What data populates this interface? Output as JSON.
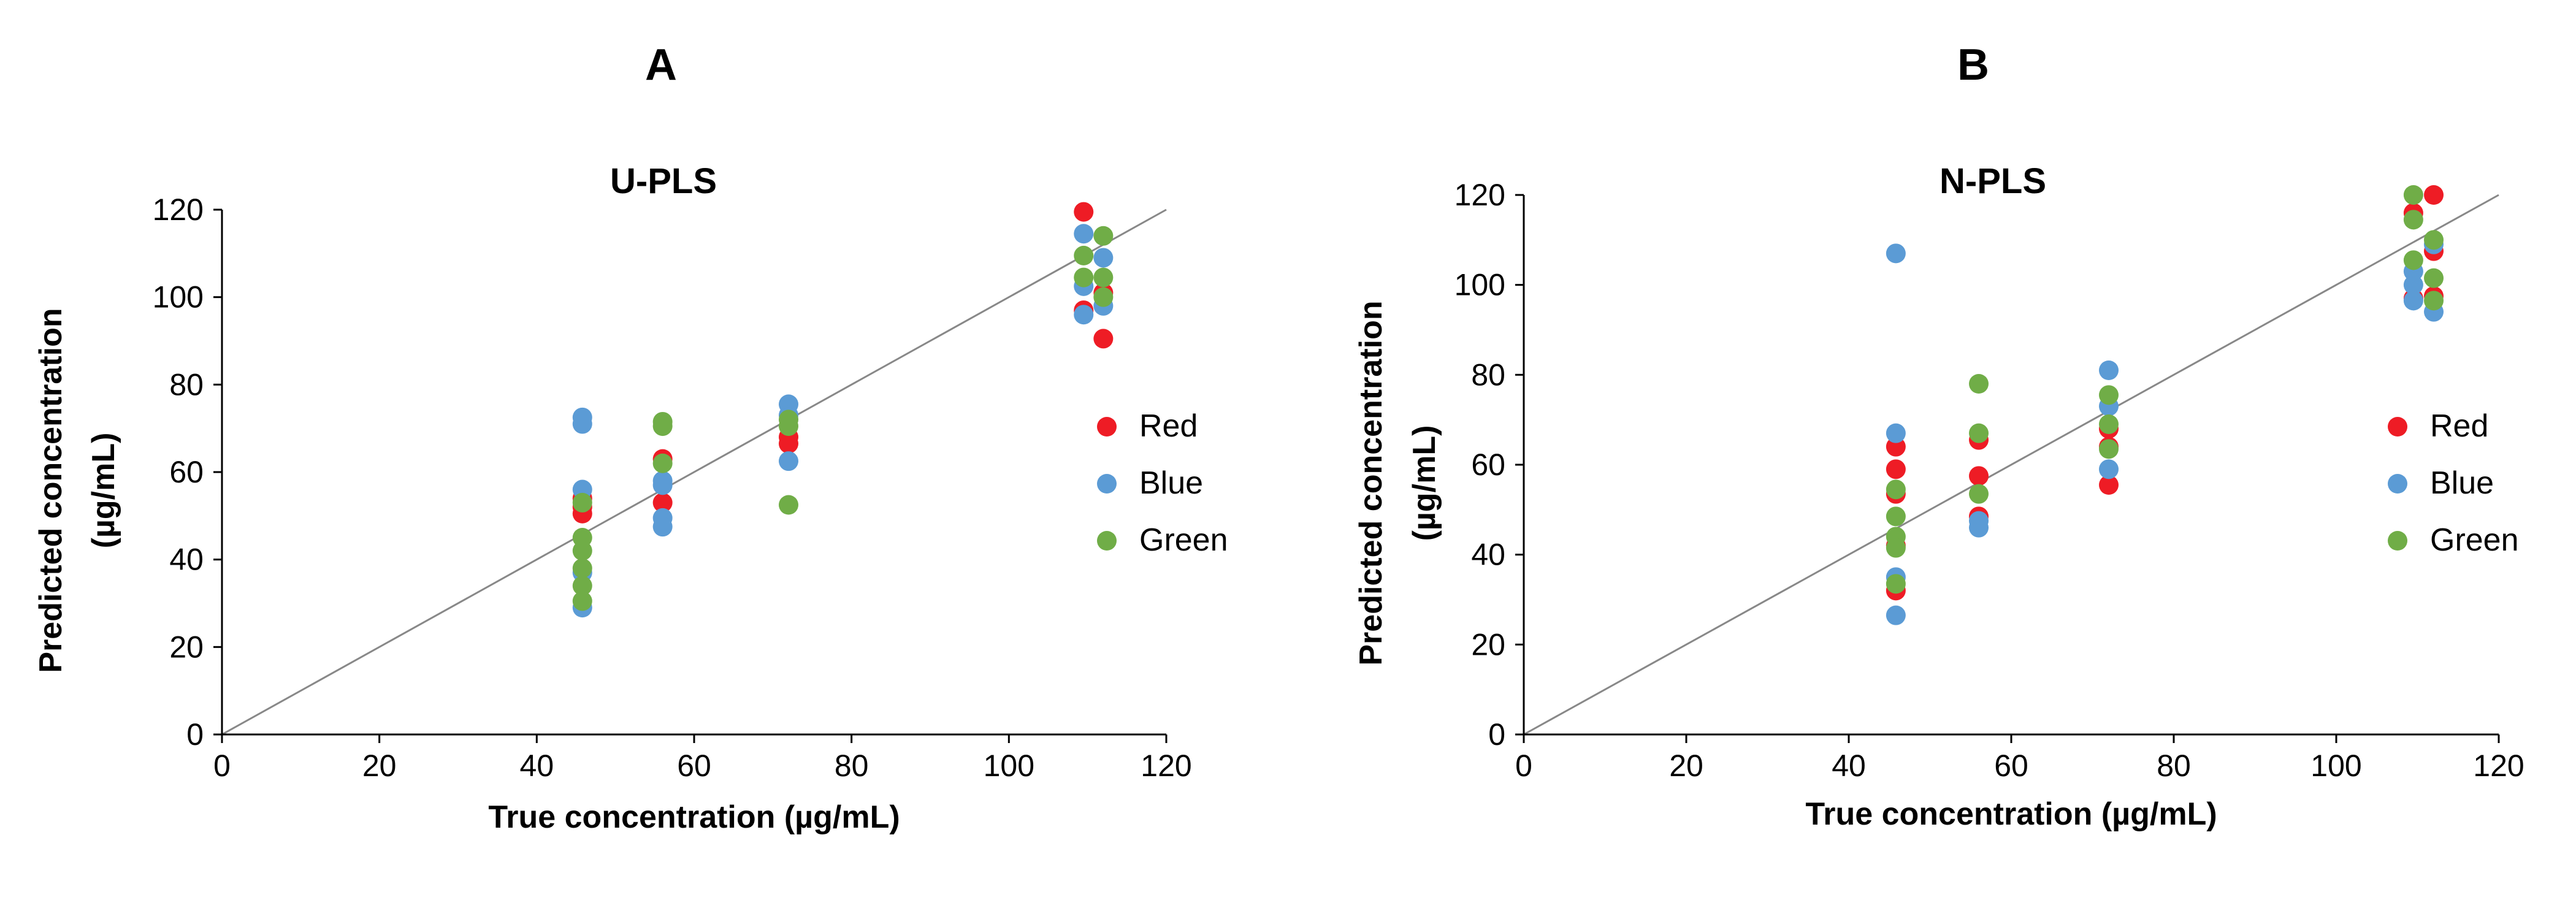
{
  "colors": {
    "Red": "#ee1c25",
    "Blue": "#5b9bd5",
    "Green": "#70ad47",
    "axis": "#000000",
    "identity": "#888888"
  },
  "chart_data": [
    {
      "type": "scatter",
      "panel_label": "A",
      "title": "U-PLS",
      "xlabel": "True concentration (µg/mL)",
      "ylabel_line1": "Predicted concentration",
      "ylabel_line2": "(µg/mL)",
      "xlim": [
        0,
        120
      ],
      "ylim": [
        0,
        120
      ],
      "xticks": [
        "0",
        "20",
        "40",
        "60",
        "80",
        "100",
        "120"
      ],
      "yticks": [
        "0",
        "20",
        "40",
        "60",
        "80",
        "100",
        "120"
      ],
      "identity_line": true,
      "legend_position": "right",
      "series": [
        {
          "name": "Red",
          "points": [
            [
              45.8,
              54
            ],
            [
              45.8,
              52
            ],
            [
              45.8,
              50.5
            ],
            [
              56,
              63
            ],
            [
              56,
              53
            ],
            [
              72,
              68
            ],
            [
              72,
              66.5
            ],
            [
              109.5,
              119.5
            ],
            [
              109.5,
              97
            ],
            [
              112,
              90.5
            ],
            [
              112,
              101
            ]
          ]
        },
        {
          "name": "Blue",
          "points": [
            [
              45.8,
              72.5
            ],
            [
              45.8,
              71
            ],
            [
              45.8,
              56
            ],
            [
              45.8,
              37
            ],
            [
              45.8,
              29
            ],
            [
              56,
              58
            ],
            [
              56,
              57
            ],
            [
              56,
              49.5
            ],
            [
              56,
              47.5
            ],
            [
              72,
              75.5
            ],
            [
              72,
              73
            ],
            [
              72,
              62.5
            ],
            [
              109.5,
              114.5
            ],
            [
              109.5,
              102.5
            ],
            [
              109.5,
              96
            ],
            [
              112,
              109
            ],
            [
              112,
              98
            ]
          ]
        },
        {
          "name": "Green",
          "points": [
            [
              45.8,
              45
            ],
            [
              45.8,
              42
            ],
            [
              45.8,
              38
            ],
            [
              45.8,
              34
            ],
            [
              45.8,
              30.5
            ],
            [
              45.8,
              53
            ],
            [
              56,
              71.5
            ],
            [
              56,
              70.5
            ],
            [
              56,
              62
            ],
            [
              72,
              72
            ],
            [
              72,
              70.5
            ],
            [
              72,
              52.5
            ],
            [
              109.5,
              109.5
            ],
            [
              109.5,
              104.5
            ],
            [
              112,
              114
            ],
            [
              112,
              104.5
            ],
            [
              112,
              100
            ]
          ]
        }
      ]
    },
    {
      "type": "scatter",
      "panel_label": "B",
      "title": "N-PLS",
      "xlabel": "True concentration (µg/mL)",
      "ylabel_line1": "Predicted concentration",
      "ylabel_line2": "(µg/mL)",
      "xlim": [
        0,
        120
      ],
      "ylim": [
        0,
        120
      ],
      "xticks": [
        "0",
        "20",
        "40",
        "60",
        "80",
        "100",
        "120"
      ],
      "yticks": [
        "0",
        "20",
        "40",
        "60",
        "80",
        "100",
        "120"
      ],
      "identity_line": true,
      "legend_position": "right",
      "series": [
        {
          "name": "Red",
          "points": [
            [
              45.8,
              64
            ],
            [
              45.8,
              59
            ],
            [
              45.8,
              53.5
            ],
            [
              45.8,
              42
            ],
            [
              45.8,
              32
            ],
            [
              56,
              65.5
            ],
            [
              56,
              57.5
            ],
            [
              56,
              48.5
            ],
            [
              72,
              68
            ],
            [
              72,
              64
            ],
            [
              72,
              55.5
            ],
            [
              109.5,
              116
            ],
            [
              109.5,
              97
            ],
            [
              112,
              120
            ],
            [
              112,
              107.5
            ],
            [
              112,
              97.5
            ]
          ]
        },
        {
          "name": "Blue",
          "points": [
            [
              45.8,
              107
            ],
            [
              45.8,
              67
            ],
            [
              45.8,
              35
            ],
            [
              45.8,
              26.5
            ],
            [
              56,
              47.5
            ],
            [
              56,
              46
            ],
            [
              72,
              81
            ],
            [
              72,
              73
            ],
            [
              72,
              59
            ],
            [
              109.5,
              103
            ],
            [
              109.5,
              100
            ],
            [
              109.5,
              96.5
            ],
            [
              112,
              109
            ],
            [
              112,
              94
            ]
          ]
        },
        {
          "name": "Green",
          "points": [
            [
              45.8,
              54.5
            ],
            [
              45.8,
              48.5
            ],
            [
              45.8,
              44
            ],
            [
              45.8,
              41.5
            ],
            [
              45.8,
              33.5
            ],
            [
              56,
              78
            ],
            [
              56,
              67
            ],
            [
              56,
              53.5
            ],
            [
              72,
              75.5
            ],
            [
              72,
              69
            ],
            [
              72,
              63.5
            ],
            [
              109.5,
              120
            ],
            [
              109.5,
              114.5
            ],
            [
              109.5,
              105.5
            ],
            [
              112,
              110
            ],
            [
              112,
              101.5
            ],
            [
              112,
              96.5
            ]
          ]
        }
      ]
    }
  ]
}
